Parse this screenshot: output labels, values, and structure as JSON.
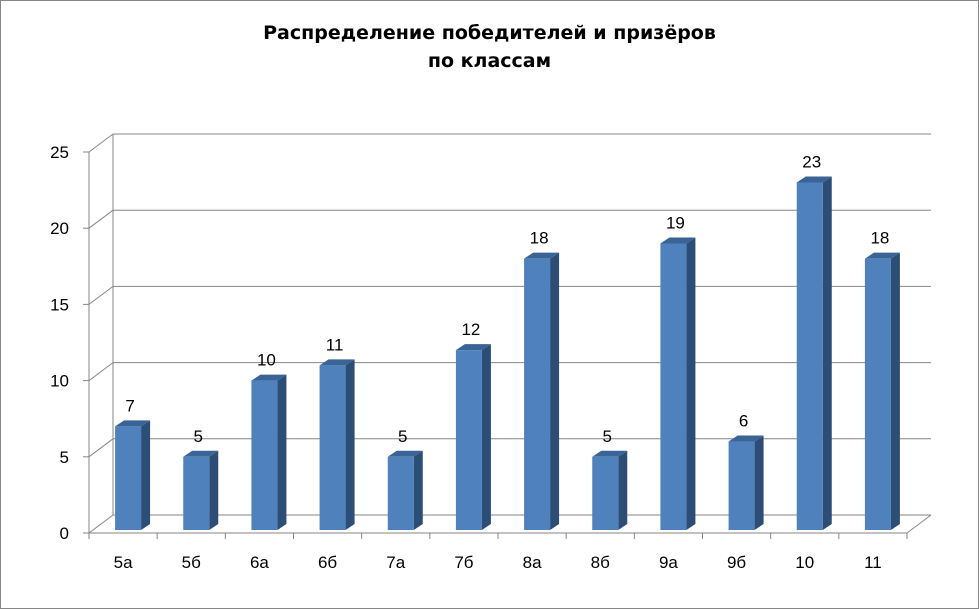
{
  "chart_data": {
    "type": "bar",
    "title_lines": [
      "Распределение победителей и призёров",
      "по классам"
    ],
    "categories": [
      "5а",
      "5б",
      "6а",
      "6б",
      "7а",
      "7б",
      "8а",
      "8б",
      "9а",
      "9б",
      "10",
      "11"
    ],
    "values": [
      7,
      5,
      10,
      11,
      5,
      12,
      18,
      5,
      19,
      6,
      23,
      18
    ],
    "ylim": [
      0,
      25
    ],
    "yticks": [
      0,
      5,
      10,
      15,
      20,
      25
    ],
    "grid": true,
    "legend": "none",
    "bar_style": "3d-column",
    "colors": {
      "bar_front": "#4F81BD",
      "bar_side": "#2C4D75",
      "bar_top": "#3A6396",
      "grid": "#868686"
    }
  }
}
